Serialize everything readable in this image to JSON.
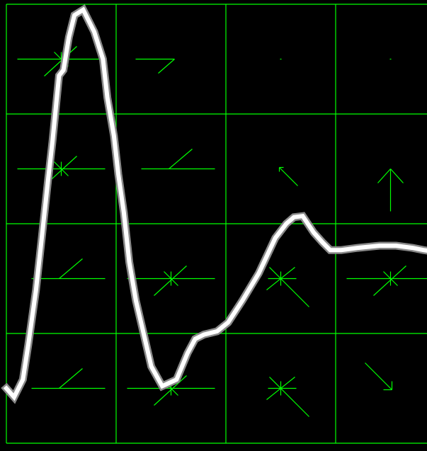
{
  "colors": {
    "background": "#000000",
    "grid": "#00ff00",
    "markers": "#00ff00",
    "trace": "#ffffff"
  },
  "chart_data": {
    "type": "line",
    "title": "",
    "xlabel": "",
    "ylabel": "",
    "xlim": [
      0,
      3.87
    ],
    "ylim": [
      0,
      4
    ],
    "grid": true,
    "grid_divisions": {
      "x": 4,
      "y": 4
    },
    "series": [
      {
        "x": [
          0,
          0.07,
          0.15,
          0.2,
          0.27,
          0.32,
          0.38,
          0.42,
          0.48,
          0.52,
          0.57,
          0.62,
          0.7,
          0.8,
          0.88,
          0.92,
          0.98,
          1.02,
          1.07,
          1.12,
          1.18,
          1.25,
          1.32,
          1.42,
          1.55,
          1.65,
          1.72,
          1.8,
          1.92,
          2.02,
          2.15,
          2.3,
          2.45,
          2.55,
          2.62,
          2.7,
          2.8,
          2.88,
          2.95,
          3.05,
          3.2,
          3.4,
          3.55,
          3.7,
          3.8,
          3.87
        ],
        "y": [
          0.5,
          0.42,
          0.58,
          0.9,
          1.4,
          1.85,
          2.4,
          2.75,
          3.35,
          3.4,
          3.7,
          3.9,
          3.95,
          3.75,
          3.5,
          3.15,
          2.8,
          2.45,
          2.1,
          1.65,
          1.3,
          1.0,
          0.7,
          0.52,
          0.58,
          0.82,
          0.95,
          0.99,
          1.02,
          1.1,
          1.3,
          1.55,
          1.87,
          2.0,
          2.06,
          2.07,
          1.92,
          1.83,
          1.76,
          1.76,
          1.78,
          1.8,
          1.8,
          1.78,
          1.76,
          1.75
        ]
      }
    ],
    "vectors": [
      {
        "x": 0.5,
        "y": 3.5,
        "shape": "star"
      },
      {
        "x": 1.5,
        "y": 3.5,
        "shape": "corner"
      },
      {
        "x": 2.5,
        "y": 3.5,
        "shape": "dot"
      },
      {
        "x": 3.5,
        "y": 3.5,
        "shape": "dot"
      },
      {
        "x": 0.5,
        "y": 2.5,
        "shape": "star"
      },
      {
        "x": 1.5,
        "y": 2.5,
        "shape": "tick"
      },
      {
        "x": 2.5,
        "y": 2.5,
        "shape": "arrow-up-left"
      },
      {
        "x": 3.5,
        "y": 2.5,
        "shape": "arrow-up"
      },
      {
        "x": 0.5,
        "y": 1.5,
        "shape": "tick"
      },
      {
        "x": 1.5,
        "y": 1.5,
        "shape": "star"
      },
      {
        "x": 2.5,
        "y": 1.5,
        "shape": "cross-diag"
      },
      {
        "x": 3.5,
        "y": 1.5,
        "shape": "star"
      },
      {
        "x": 0.5,
        "y": 0.5,
        "shape": "tick"
      },
      {
        "x": 1.5,
        "y": 0.5,
        "shape": "star"
      },
      {
        "x": 2.5,
        "y": 0.5,
        "shape": "cross-diag"
      },
      {
        "x": 3.5,
        "y": 0.5,
        "shape": "arrow-down-right"
      }
    ]
  }
}
